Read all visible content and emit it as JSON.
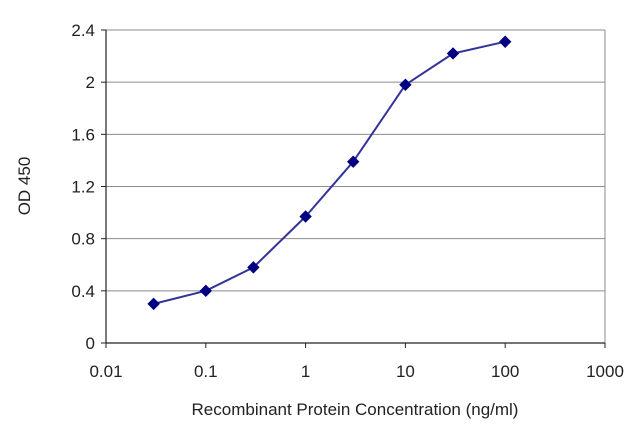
{
  "chart_data": {
    "type": "line",
    "title": "",
    "xlabel": "Recombinant Protein Concentration (ng/ml)",
    "ylabel": "OD 450",
    "x_scale": "log",
    "xlim": [
      0.01,
      1000
    ],
    "ylim": [
      0,
      2.4
    ],
    "x_ticks": [
      "0.01",
      "0.1",
      "1",
      "10",
      "100",
      "1000"
    ],
    "y_ticks": [
      "0",
      "0.4",
      "0.8",
      "1.2",
      "1.6",
      "2",
      "2.4"
    ],
    "grid": "horizontal",
    "legend": "none",
    "series": [
      {
        "x": [
          0.03,
          0.1,
          0.3,
          1,
          3,
          10,
          30,
          100
        ],
        "y": [
          0.3,
          0.4,
          0.58,
          0.97,
          1.39,
          1.98,
          2.22,
          2.31
        ],
        "color": "#333399",
        "marker": "diamond",
        "marker_color": "#000080"
      }
    ]
  }
}
